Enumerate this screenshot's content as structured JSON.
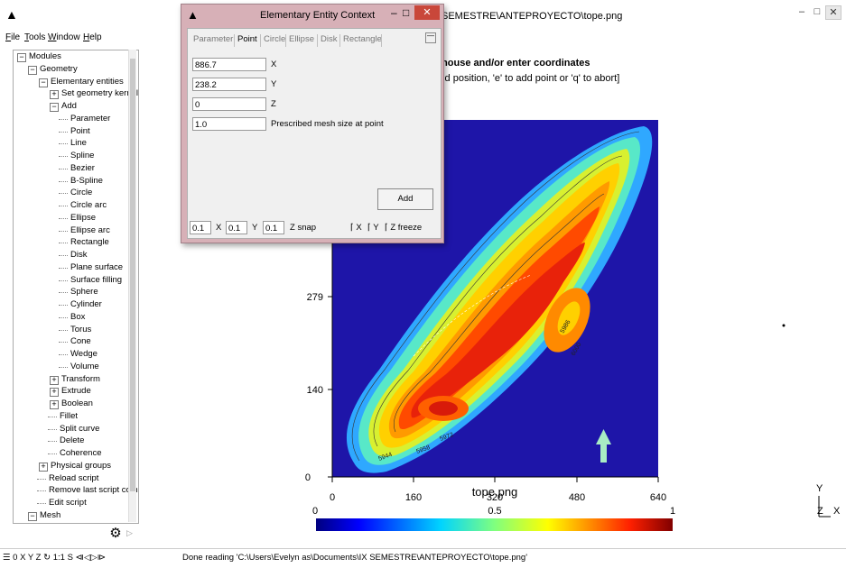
{
  "window": {
    "title": "SEMESTRE\\ANTEPROYECTO\\tope.png",
    "min": "–",
    "max": "□",
    "close": "✕"
  },
  "menu": [
    "File",
    "Tools",
    "Window",
    "Help"
  ],
  "tree": [
    {
      "label": "Modules",
      "depth": 0,
      "expander": "-"
    },
    {
      "label": "Geometry",
      "depth": 1,
      "expander": "-"
    },
    {
      "label": "Elementary entities",
      "depth": 2,
      "expander": "-"
    },
    {
      "label": "Set geometry kernel",
      "depth": 3,
      "expander": "+"
    },
    {
      "label": "Add",
      "depth": 3,
      "expander": "-"
    },
    {
      "label": "Parameter",
      "depth": 4,
      "expander": ""
    },
    {
      "label": "Point",
      "depth": 4,
      "expander": ""
    },
    {
      "label": "Line",
      "depth": 4,
      "expander": ""
    },
    {
      "label": "Spline",
      "depth": 4,
      "expander": ""
    },
    {
      "label": "Bezier",
      "depth": 4,
      "expander": ""
    },
    {
      "label": "B-Spline",
      "depth": 4,
      "expander": ""
    },
    {
      "label": "Circle",
      "depth": 4,
      "expander": ""
    },
    {
      "label": "Circle arc",
      "depth": 4,
      "expander": ""
    },
    {
      "label": "Ellipse",
      "depth": 4,
      "expander": ""
    },
    {
      "label": "Ellipse arc",
      "depth": 4,
      "expander": ""
    },
    {
      "label": "Rectangle",
      "depth": 4,
      "expander": ""
    },
    {
      "label": "Disk",
      "depth": 4,
      "expander": ""
    },
    {
      "label": "Plane surface",
      "depth": 4,
      "expander": ""
    },
    {
      "label": "Surface filling",
      "depth": 4,
      "expander": ""
    },
    {
      "label": "Sphere",
      "depth": 4,
      "expander": ""
    },
    {
      "label": "Cylinder",
      "depth": 4,
      "expander": ""
    },
    {
      "label": "Box",
      "depth": 4,
      "expander": ""
    },
    {
      "label": "Torus",
      "depth": 4,
      "expander": ""
    },
    {
      "label": "Cone",
      "depth": 4,
      "expander": ""
    },
    {
      "label": "Wedge",
      "depth": 4,
      "expander": ""
    },
    {
      "label": "Volume",
      "depth": 4,
      "expander": ""
    },
    {
      "label": "Transform",
      "depth": 3,
      "expander": "+"
    },
    {
      "label": "Extrude",
      "depth": 3,
      "expander": "+"
    },
    {
      "label": "Boolean",
      "depth": 3,
      "expander": "+"
    },
    {
      "label": "Fillet",
      "depth": 3,
      "expander": ""
    },
    {
      "label": "Split curve",
      "depth": 3,
      "expander": ""
    },
    {
      "label": "Delete",
      "depth": 3,
      "expander": ""
    },
    {
      "label": "Coherence",
      "depth": 3,
      "expander": ""
    },
    {
      "label": "Physical groups",
      "depth": 2,
      "expander": "+"
    },
    {
      "label": "Reload script",
      "depth": 2,
      "expander": ""
    },
    {
      "label": "Remove last script com",
      "depth": 2,
      "expander": ""
    },
    {
      "label": "Edit script",
      "depth": 2,
      "expander": ""
    },
    {
      "label": "Mesh",
      "depth": 1,
      "expander": "-"
    }
  ],
  "dialog": {
    "title": "Elementary Entity Context",
    "tabs": [
      "Parameter",
      "Point",
      "Circle",
      "Ellipse",
      "Disk",
      "Rectangle"
    ],
    "active_tab": "Point",
    "fields": [
      {
        "value": "886.7",
        "label": "X"
      },
      {
        "value": "238.2",
        "label": "Y"
      },
      {
        "value": "0",
        "label": "Z"
      },
      {
        "value": "1.0",
        "label": "Prescribed mesh size at point"
      }
    ],
    "add_label": "Add",
    "snap": [
      {
        "value": "0.1",
        "label": "X"
      },
      {
        "value": "0.1",
        "label": "Y"
      },
      {
        "value": "0.1",
        "label": "Z snap"
      }
    ],
    "freeze": [
      "X",
      "Y",
      "Z freeze"
    ]
  },
  "graphics": {
    "message_line1": "mouse and/or enter coordinates",
    "message_line2": "old position, 'e' to add point or 'q' to abort]",
    "image_label": "tope.png",
    "y_ticks": [
      "0",
      "140",
      "279"
    ],
    "x_ticks": [
      "0",
      "160",
      "320",
      "480",
      "640"
    ],
    "colorbar_labels": [
      "0",
      "0.5",
      "1"
    ],
    "contour_labels": [
      "5972",
      "5958",
      "5986",
      "6000",
      "5944"
    ],
    "axes_labels": [
      "Y",
      "Z",
      "X"
    ],
    "colors": {
      "background": "#1e15a8",
      "arrow": "#a8ecc4"
    }
  },
  "status": {
    "icons": "☰ 0 X Y Z ↻ 1:1 S ⧏◁▷⧐",
    "text": "Done reading 'C:\\Users\\Evelyn as\\Documents\\IX SEMESTRE\\ANTEPROYECTO\\tope.png'"
  }
}
